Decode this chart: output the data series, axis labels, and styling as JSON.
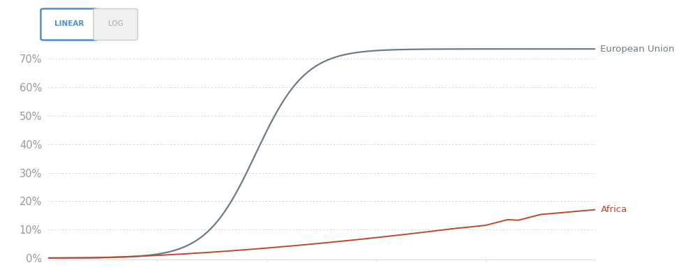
{
  "background_color": "#ffffff",
  "eu_color": "#6b7b8d",
  "africa_color": "#c0472a",
  "yticks": [
    0,
    10,
    20,
    30,
    40,
    50,
    60,
    70
  ],
  "ytick_labels": [
    "0%",
    "10%",
    "20%",
    "30%",
    "40%",
    "50%",
    "60%",
    "70%"
  ],
  "ylim_max": 76,
  "xlim": [
    0,
    100
  ],
  "grid_color": "#cccccc",
  "label_color": "#999999",
  "eu_label": "European Union",
  "africa_label": "Africa",
  "btn_linear_color": "#4a90d9",
  "btn_log_color": "#aaaaaa",
  "btn_log_bg": "#f0f0f0"
}
